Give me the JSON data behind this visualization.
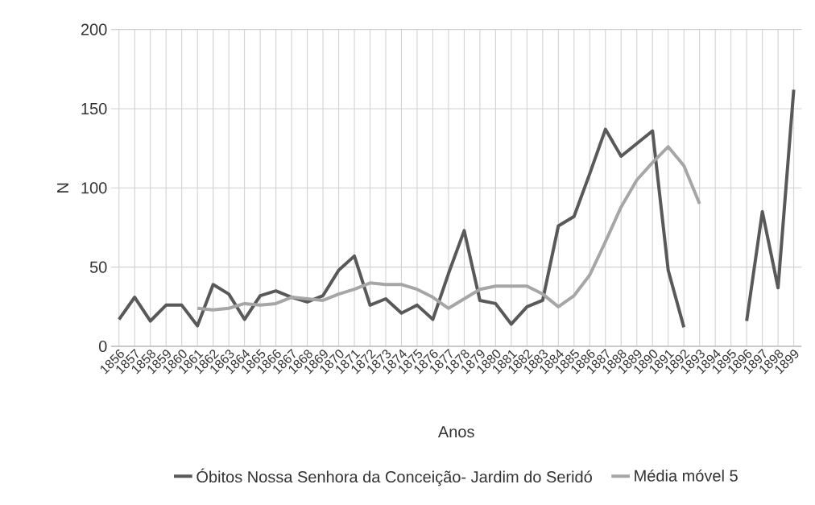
{
  "chart_data": {
    "type": "line",
    "xlabel": "Anos",
    "ylabel": "N",
    "categories": [
      "1856",
      "1857",
      "1858",
      "1859",
      "1860",
      "1861",
      "1862",
      "1863",
      "1864",
      "1865",
      "1866",
      "1867",
      "1868",
      "1869",
      "1870",
      "1871",
      "1872",
      "1873",
      "1874",
      "1875",
      "1876",
      "1877",
      "1878",
      "1879",
      "1880",
      "1881",
      "1882",
      "1883",
      "1884",
      "1885",
      "1886",
      "1887",
      "1888",
      "1889",
      "1890",
      "1891",
      "1892",
      "1893",
      "1894",
      "1895",
      "1896",
      "1897",
      "1898",
      "1899"
    ],
    "series": [
      {
        "name": "Óbitos Nossa Senhora da Conceição- Jardim do Seridó",
        "color": "#595959",
        "values": [
          17,
          31,
          16,
          26,
          26,
          13,
          39,
          33,
          17,
          32,
          35,
          31,
          28,
          32,
          48,
          57,
          26,
          30,
          21,
          26,
          17,
          46,
          73,
          29,
          27,
          14,
          25,
          29,
          76,
          82,
          109,
          137,
          120,
          128,
          136,
          48,
          12,
          null,
          null,
          null,
          16,
          85,
          37,
          162
        ]
      },
      {
        "name": "Média móvel 5",
        "color": "#a6a6a6",
        "values": [
          null,
          null,
          null,
          null,
          null,
          24,
          23,
          24,
          27,
          26,
          27,
          31,
          30,
          29,
          33,
          36,
          40,
          39,
          39,
          36,
          31,
          24,
          30,
          36,
          38,
          38,
          38,
          33,
          25,
          32,
          45,
          66,
          88,
          105,
          116,
          126,
          114,
          90,
          null,
          null,
          null,
          null,
          null,
          null
        ]
      }
    ],
    "ylim": [
      0,
      200
    ],
    "yticks": [
      0,
      50,
      100,
      150,
      200
    ],
    "grid": true,
    "legend": "bottom",
    "marker": "none",
    "line_style": "solid"
  }
}
